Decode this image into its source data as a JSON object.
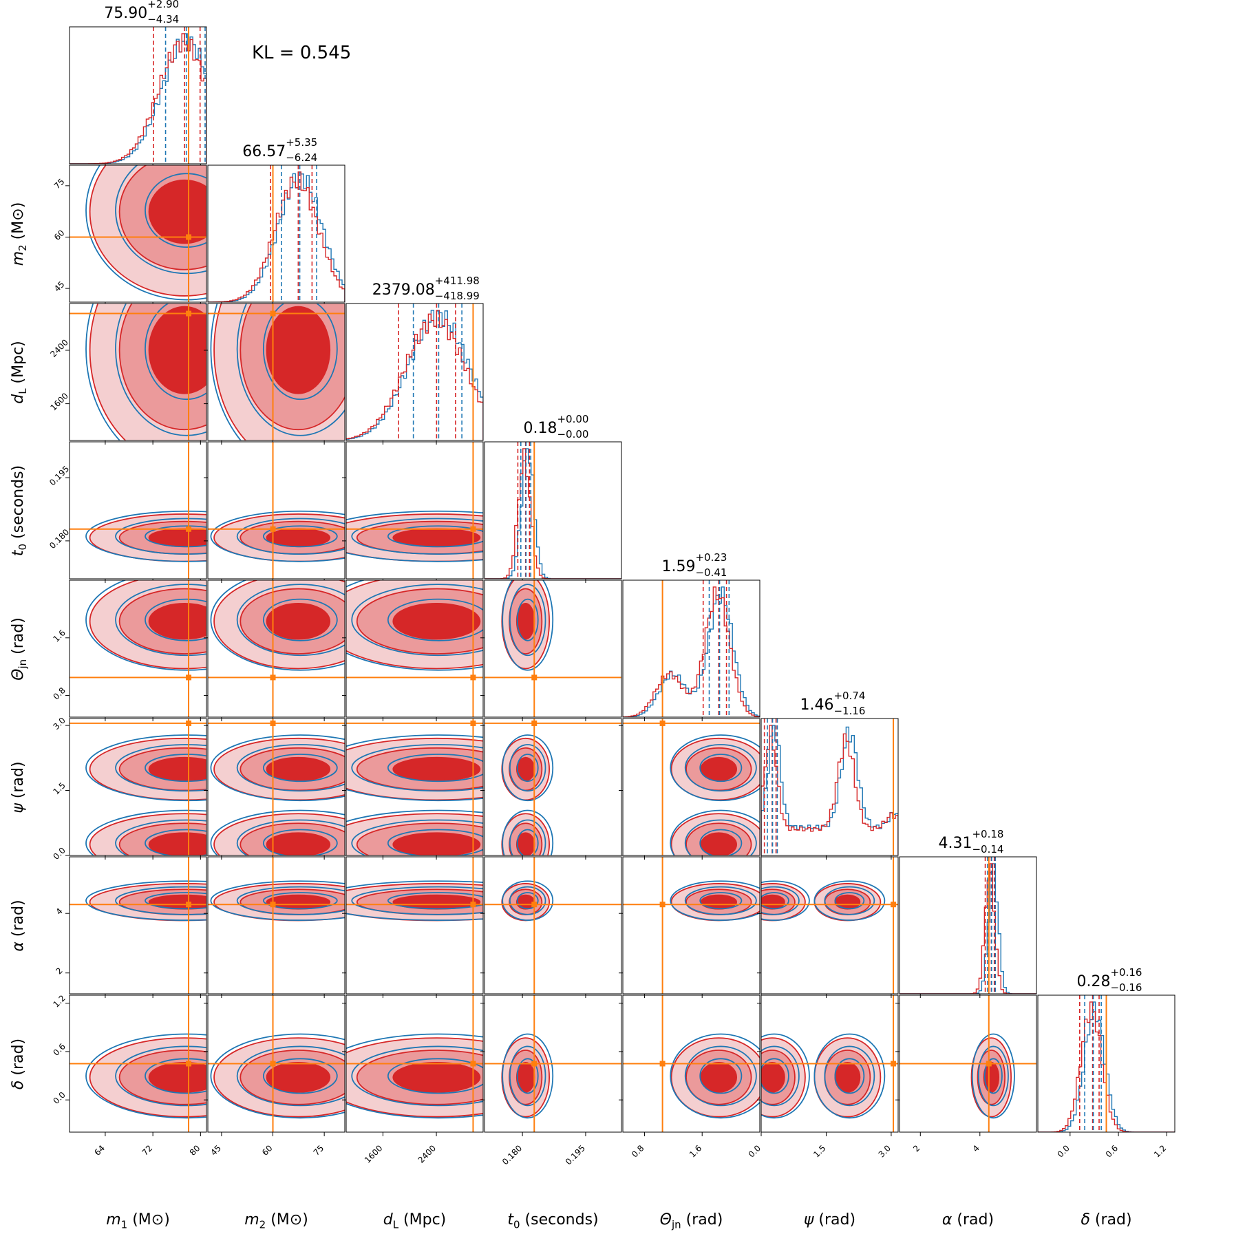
{
  "figure": {
    "kl_text": "KL = 0.545",
    "colors": {
      "posterior_a": "#d62728",
      "posterior_b": "#1f77b4",
      "truth": "#ff7f0e"
    }
  },
  "chart_data": {
    "type": "corner",
    "parameters": [
      {
        "key": "m1",
        "label_main": "m",
        "label_sub": "1",
        "label_unit": " (M⊙)",
        "range": [
          58,
          81
        ],
        "ticks": [
          64,
          72,
          80
        ],
        "tick_labels": [
          "64",
          "72",
          "80"
        ],
        "truth": 78,
        "median": "75.90",
        "plus": "+2.90",
        "minus": "−4.34"
      },
      {
        "key": "m2",
        "label_main": "m",
        "label_sub": "2",
        "label_unit": " (M⊙)",
        "range": [
          41,
          81
        ],
        "ticks": [
          45,
          60,
          75
        ],
        "tick_labels": [
          "45",
          "60",
          "75"
        ],
        "truth": 60,
        "median": "66.57",
        "plus": "+5.35",
        "minus": "−6.24"
      },
      {
        "key": "dL",
        "label_main": "d",
        "label_sub": "L",
        "label_unit": " (Mpc)",
        "range": [
          1050,
          3100
        ],
        "ticks": [
          1600,
          2400
        ],
        "tick_labels": [
          "1600",
          "2400"
        ],
        "truth": 2950,
        "median": "2379.08",
        "plus": "+411.98",
        "minus": "−418.99"
      },
      {
        "key": "t0",
        "label_main": "t",
        "label_sub": "0",
        "label_unit": " (seconds)",
        "range": [
          0.171,
          0.2035
        ],
        "ticks": [
          0.18,
          0.195
        ],
        "tick_labels": [
          "0.180",
          "0.195"
        ],
        "truth": 0.1828,
        "median": "0.18",
        "plus": "+0.00",
        "minus": "−0.00"
      },
      {
        "key": "theta",
        "label_main": "Θ",
        "label_sub": "jn",
        "label_unit": " (rad)",
        "range": [
          0.5,
          2.4
        ],
        "ticks": [
          0.8,
          1.6
        ],
        "tick_labels": [
          "0.8",
          "1.6"
        ],
        "truth": 1.05,
        "median": "1.59",
        "plus": "+0.23",
        "minus": "−0.41"
      },
      {
        "key": "psi",
        "label_main": "ψ",
        "label_sub": "",
        "label_unit": " (rad)",
        "range": [
          0.0,
          3.16
        ],
        "ticks": [
          0.0,
          1.5,
          3.0
        ],
        "tick_labels": [
          "0.0",
          "1.5",
          "3.0"
        ],
        "truth": 3.05,
        "median": "1.46",
        "plus": "+0.74",
        "minus": "−1.16"
      },
      {
        "key": "alpha",
        "label_main": "α",
        "label_sub": "",
        "label_unit": " (rad)",
        "range": [
          1.3,
          5.9
        ],
        "ticks": [
          2,
          4
        ],
        "tick_labels": [
          "2",
          "4"
        ],
        "truth": 4.3,
        "median": "4.31",
        "plus": "+0.18",
        "minus": "−0.14"
      },
      {
        "key": "delta",
        "label_main": "δ",
        "label_sub": "",
        "label_unit": " (rad)",
        "range": [
          -0.4,
          1.3
        ],
        "ticks": [
          0.0,
          0.6,
          1.2
        ],
        "tick_labels": [
          "0.0",
          "0.6",
          "1.2"
        ],
        "truth": 0.45,
        "median": "0.28",
        "plus": "+0.16",
        "minus": "−0.16"
      }
    ]
  }
}
